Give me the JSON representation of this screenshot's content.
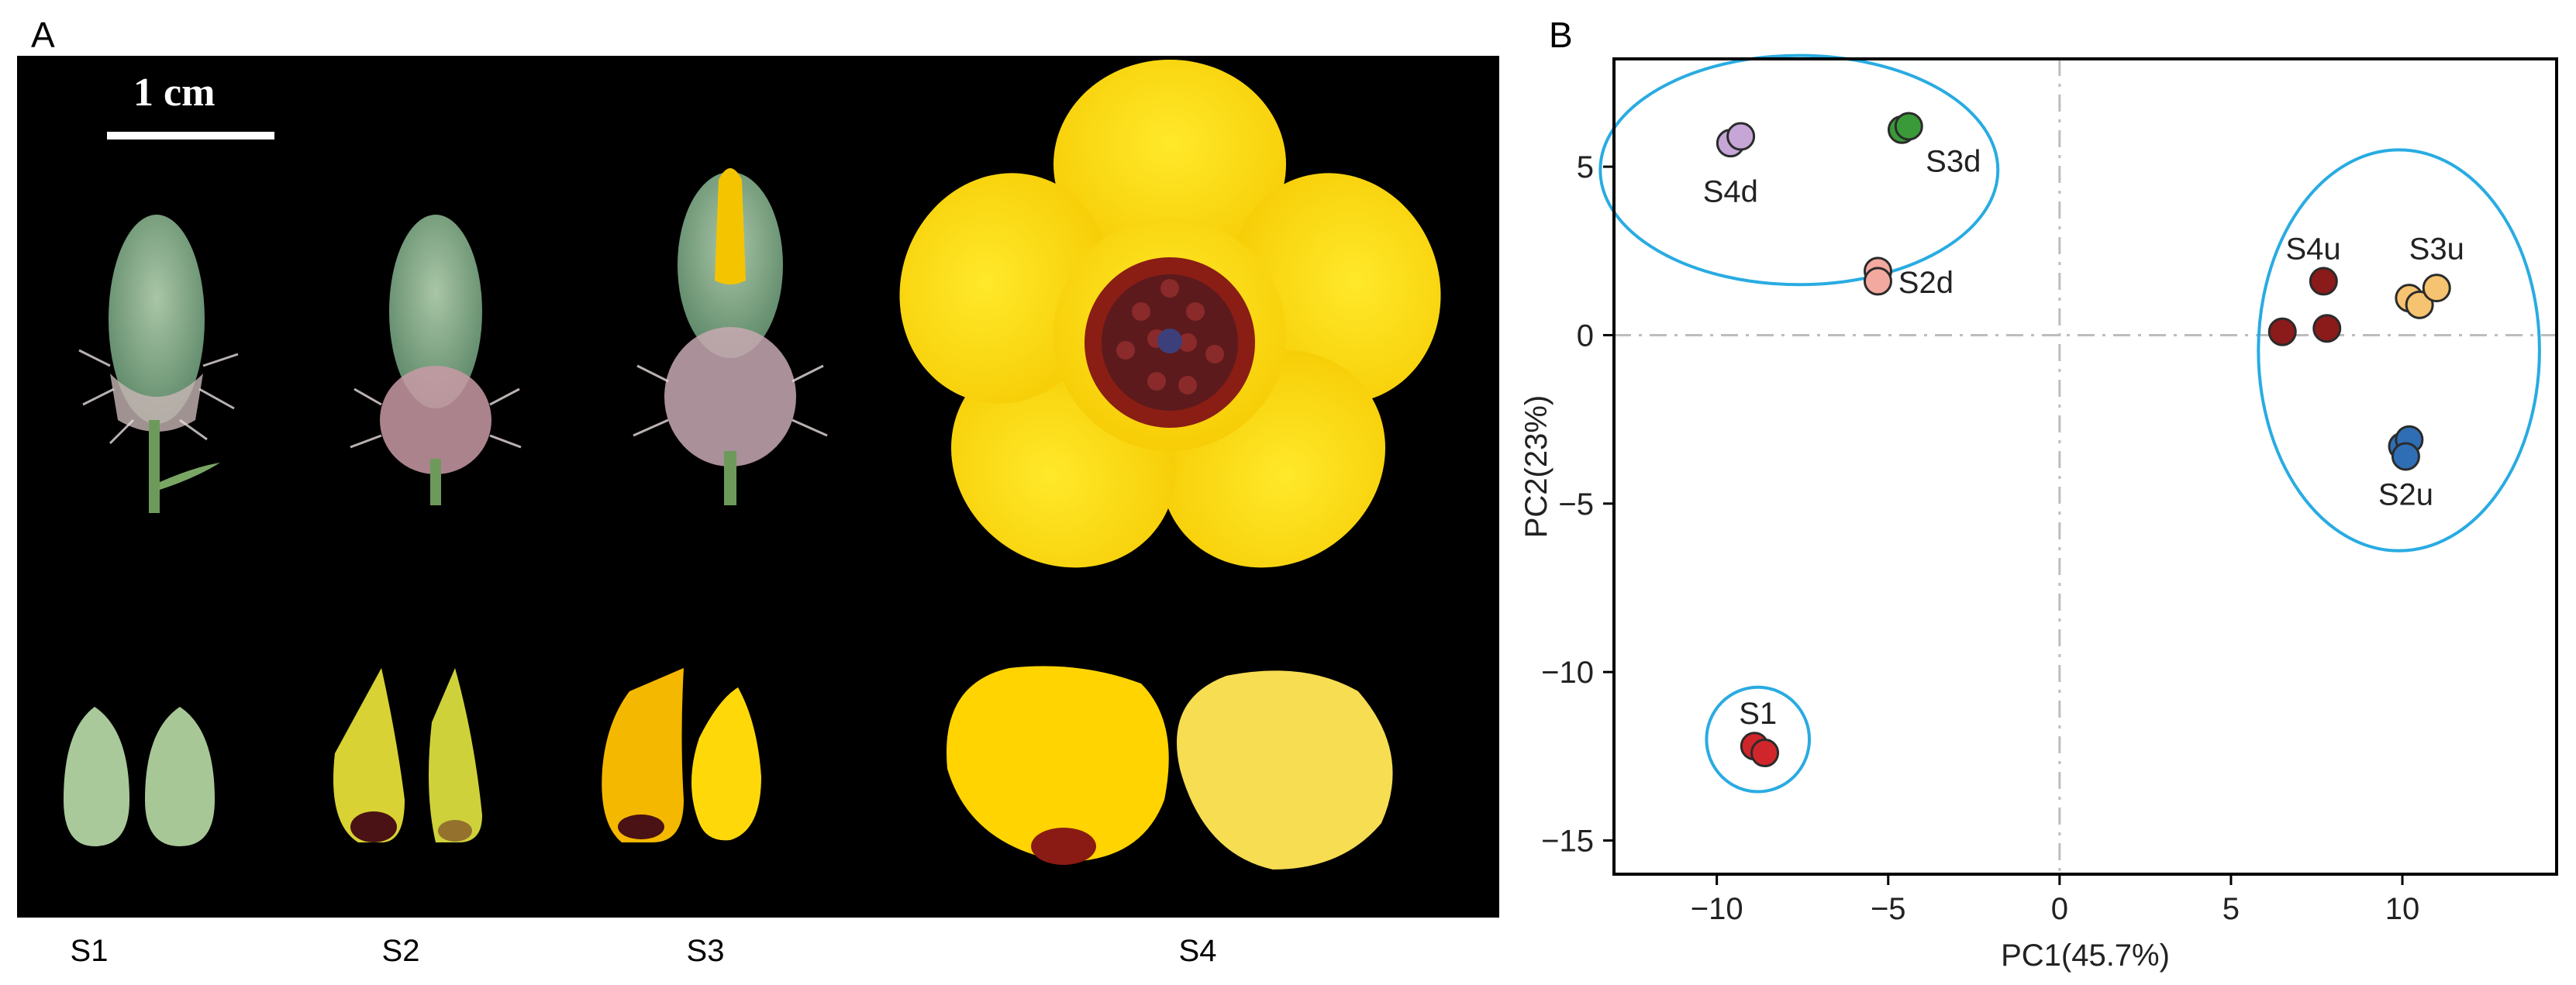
{
  "panel_a": {
    "letter": "A",
    "scale_bar_label": "1 cm",
    "stages": [
      "S1",
      "S2",
      "S3",
      "S4"
    ]
  },
  "panel_b": {
    "letter": "B"
  },
  "chart_data": {
    "type": "scatter",
    "xlabel": "PC1(45.7%)",
    "ylabel": "PC2(23%)",
    "xlim": [
      -13,
      14.5
    ],
    "ylim": [
      -16,
      8.2
    ],
    "xticks": [
      -10,
      -5,
      0,
      5,
      10
    ],
    "yticks": [
      5,
      0,
      -5,
      -10,
      -15
    ],
    "reference_lines": {
      "x": 0,
      "y": 0,
      "style": "dash-dot",
      "color": "#bdbdbd"
    },
    "series": [
      {
        "name": "S1",
        "color": "#d0262b",
        "points": [
          [
            -8.9,
            -12.2
          ],
          [
            -8.6,
            -12.4
          ]
        ]
      },
      {
        "name": "S2d",
        "color": "#f4a9a0",
        "points": [
          [
            -5.3,
            1.9
          ],
          [
            -5.3,
            1.6
          ]
        ]
      },
      {
        "name": "S3d",
        "color": "#3a9a3a",
        "points": [
          [
            -4.6,
            6.1
          ],
          [
            -4.4,
            6.2
          ]
        ]
      },
      {
        "name": "S4d",
        "color": "#c6a6d6",
        "points": [
          [
            -9.6,
            5.7
          ],
          [
            -9.3,
            5.9
          ]
        ]
      },
      {
        "name": "S2u",
        "color": "#2f6eb5",
        "points": [
          [
            10.0,
            -3.3
          ],
          [
            10.2,
            -3.1
          ],
          [
            10.1,
            -3.6
          ]
        ]
      },
      {
        "name": "S3u",
        "color": "#f6c370",
        "points": [
          [
            10.2,
            1.1
          ],
          [
            10.5,
            0.9
          ],
          [
            11.0,
            1.4
          ]
        ]
      },
      {
        "name": "S4u",
        "color": "#8b1a1a",
        "points": [
          [
            6.5,
            0.1
          ],
          [
            7.7,
            1.6
          ],
          [
            7.8,
            0.2
          ]
        ]
      }
    ],
    "point_labels": [
      {
        "text": "S1",
        "x": -8.8,
        "y": -11.3
      },
      {
        "text": "S2d",
        "x": -3.9,
        "y": 1.5
      },
      {
        "text": "S3d",
        "x": -3.1,
        "y": 5.1
      },
      {
        "text": "S4d",
        "x": -9.6,
        "y": 4.2
      },
      {
        "text": "S4u",
        "x": 7.4,
        "y": 2.5
      },
      {
        "text": "S3u",
        "x": 11.0,
        "y": 2.5
      },
      {
        "text": "S2u",
        "x": 10.1,
        "y": -4.8
      }
    ],
    "clusters": [
      {
        "cx": -7.6,
        "cy": 4.9,
        "rx": 5.8,
        "ry": 3.4,
        "color": "#29abe2"
      },
      {
        "cx": 9.9,
        "cy": -0.45,
        "rx": 4.1,
        "ry": 5.95,
        "color": "#29abe2"
      },
      {
        "cx": -8.8,
        "cy": -12.0,
        "rx": 1.5,
        "ry": 1.55,
        "color": "#29abe2"
      }
    ]
  }
}
